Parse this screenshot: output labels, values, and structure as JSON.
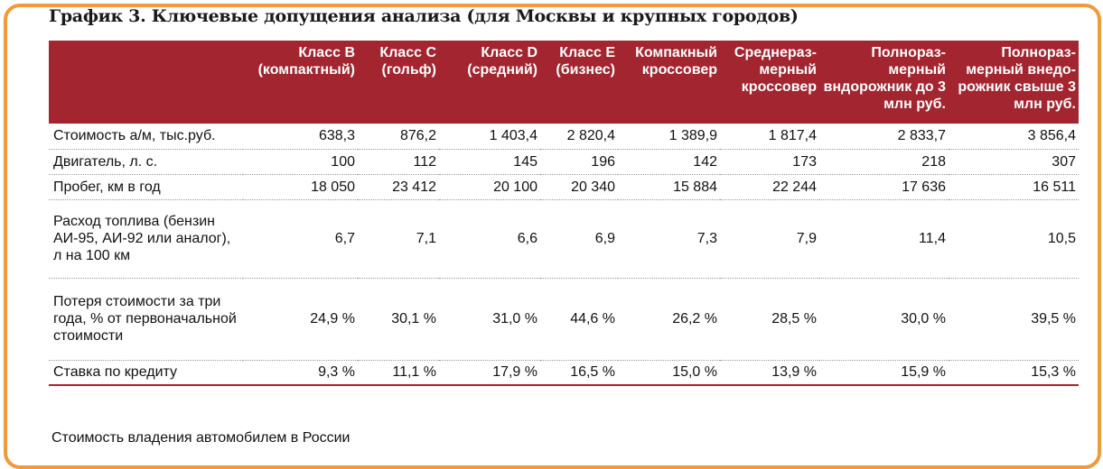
{
  "title": "График 3. Ключевые допущения анализа (для Москвы и крупных городов)",
  "columns": [
    "Класс B (компактный)",
    "Класс C (гольф)",
    "Класс D (средний)",
    "Класс E (бизнес)",
    "Компакный кроссовер",
    "Среднераз-мерный кроссовер",
    "Полнораз-мерный вндорожник до 3 млн руб.",
    "Полнораз-мерный внедо-рожник свыше 3 млн руб."
  ],
  "rows": [
    {
      "label": "Стоимость а/м, тыс.руб.",
      "values": [
        "638,3",
        "876,2",
        "1 403,4",
        "2 820,4",
        "1 389,9",
        "1 817,4",
        "2 833,7",
        "3 856,4"
      ]
    },
    {
      "label": "Двигатель, л. с.",
      "values": [
        "100",
        "112",
        "145",
        "196",
        "142",
        "173",
        "218",
        "307"
      ]
    },
    {
      "label": "Пробег, км в год",
      "values": [
        "18 050",
        "23 412",
        "20 100",
        "20 340",
        "15 884",
        "22 244",
        "17 636",
        "16 511"
      ]
    },
    {
      "label": "Расход топлива (бензин АИ-95, АИ-92 или аналог), л на 100 км",
      "values": [
        "6,7",
        "7,1",
        "6,6",
        "6,9",
        "7,3",
        "7,9",
        "11,4",
        "10,5"
      ]
    },
    {
      "label": "Потеря стоимости за три года, % от первоначальной стоимости",
      "values": [
        "24,9 %",
        "30,1 %",
        "31,0 %",
        "44,6 %",
        "26,2 %",
        "28,5 %",
        "30,0 %",
        "39,5 %"
      ]
    },
    {
      "label": "Ставка по кредиту",
      "values": [
        "9,3 %",
        "11,1 %",
        "17,9 %",
        "16,5 %",
        "15,0 %",
        "13,9 %",
        "15,9 %",
        "15,3 %"
      ]
    }
  ],
  "footer": "Стоимость владения автомобилем в России",
  "colors": {
    "header_bg": "#a3252f",
    "frame_border": "#f29a38",
    "header_text": "#ffffff"
  }
}
